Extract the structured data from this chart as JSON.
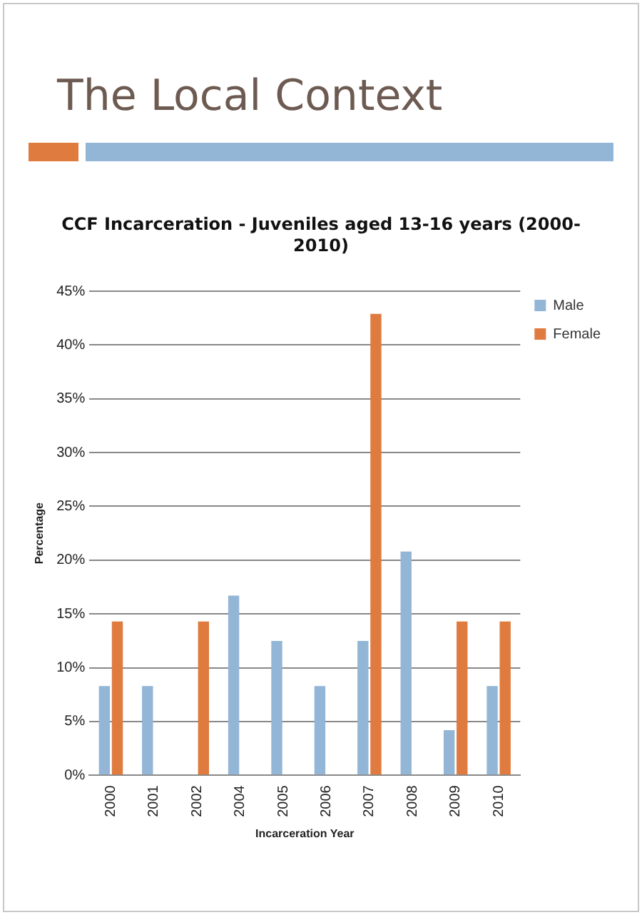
{
  "chart_data": {
    "type": "bar",
    "title": "CCF Incarceration  - Juveniles aged 13-16 years (2000-2010)",
    "subtitle": "The Local Context",
    "xlabel": "Incarceration Year",
    "ylabel": "Percentage",
    "categories": [
      "2000",
      "2001",
      "2002",
      "2004",
      "2005",
      "2006",
      "2007",
      "2008",
      "2009",
      "2010"
    ],
    "series": [
      {
        "name": "Male",
        "color": "#93b6d6",
        "values": [
          8.3,
          8.3,
          null,
          16.7,
          12.5,
          8.3,
          12.5,
          20.8,
          4.2,
          8.3
        ]
      },
      {
        "name": "Female",
        "color": "#e07b3f",
        "values": [
          14.3,
          null,
          14.3,
          null,
          null,
          null,
          42.9,
          null,
          14.3,
          14.3
        ]
      }
    ],
    "ylim": [
      0,
      45
    ],
    "yticks": [
      {
        "value": 0,
        "label": "0%"
      },
      {
        "value": 5,
        "label": "5%"
      },
      {
        "value": 10,
        "label": "10%"
      },
      {
        "value": 15,
        "label": "15%"
      },
      {
        "value": 20,
        "label": "20%"
      },
      {
        "value": 25,
        "label": "25%"
      },
      {
        "value": 30,
        "label": "30%"
      },
      {
        "value": 35,
        "label": "35%"
      },
      {
        "value": 40,
        "label": "40%"
      },
      {
        "value": 45,
        "label": "45%"
      }
    ],
    "grid": "y",
    "legend": "right"
  }
}
